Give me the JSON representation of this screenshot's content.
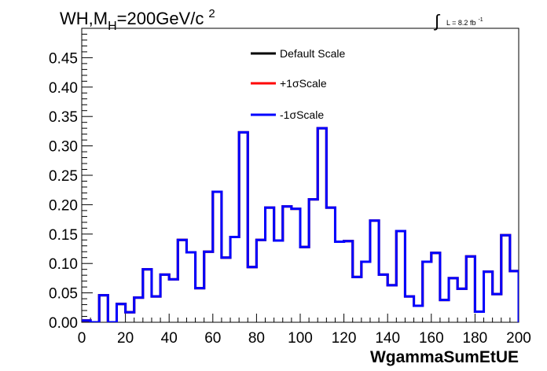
{
  "chart_data": {
    "type": "line",
    "title_main": "WH,M",
    "title_sub": "H",
    "title_rest": "=200GeV/c",
    "title_sup": "2",
    "lumi_text": "L = 8.2 fb",
    "lumi_sup": "-1",
    "xlabel": "WgammaSumEtUE",
    "ylabel": "",
    "xlim": [
      0,
      200
    ],
    "ylim": [
      0,
      0.5
    ],
    "x_ticks": [
      "0",
      "20",
      "40",
      "60",
      "80",
      "100",
      "120",
      "140",
      "160",
      "180",
      "200"
    ],
    "y_ticks": [
      "0.00",
      "0.05",
      "0.10",
      "0.15",
      "0.20",
      "0.25",
      "0.30",
      "0.35",
      "0.40",
      "0.45"
    ],
    "grid": false,
    "legend_position": "top-center",
    "bin_width": 4,
    "series": [
      {
        "name": "Default Scale",
        "color": "#000000",
        "values": [
          0.003,
          0.0,
          0.046,
          0.0,
          0.031,
          0.017,
          0.042,
          0.09,
          0.044,
          0.081,
          0.073,
          0.14,
          0.119,
          0.058,
          0.12,
          0.222,
          0.11,
          0.145,
          0.323,
          0.094,
          0.14,
          0.195,
          0.139,
          0.197,
          0.193,
          0.128,
          0.209,
          0.33,
          0.195,
          0.137,
          0.138,
          0.077,
          0.103,
          0.173,
          0.081,
          0.063,
          0.155,
          0.044,
          0.028,
          0.103,
          0.118,
          0.038,
          0.075,
          0.057,
          0.112,
          0.018,
          0.086,
          0.048,
          0.148,
          0.087,
          0.0
        ]
      },
      {
        "name": "+1σScale",
        "color": "#ff0000",
        "values": [
          0.003,
          0.0,
          0.046,
          0.0,
          0.031,
          0.017,
          0.042,
          0.09,
          0.044,
          0.081,
          0.073,
          0.14,
          0.119,
          0.058,
          0.12,
          0.222,
          0.11,
          0.145,
          0.323,
          0.094,
          0.14,
          0.195,
          0.139,
          0.197,
          0.193,
          0.128,
          0.209,
          0.33,
          0.195,
          0.137,
          0.138,
          0.077,
          0.103,
          0.173,
          0.081,
          0.063,
          0.155,
          0.044,
          0.028,
          0.103,
          0.118,
          0.038,
          0.075,
          0.057,
          0.112,
          0.018,
          0.086,
          0.048,
          0.148,
          0.087,
          0.0
        ]
      },
      {
        "name": "-1σScale",
        "color": "#0000ff",
        "values": [
          0.003,
          0.0,
          0.046,
          0.0,
          0.031,
          0.017,
          0.042,
          0.09,
          0.044,
          0.081,
          0.073,
          0.14,
          0.119,
          0.058,
          0.12,
          0.222,
          0.11,
          0.145,
          0.323,
          0.094,
          0.14,
          0.195,
          0.139,
          0.197,
          0.193,
          0.128,
          0.209,
          0.33,
          0.195,
          0.137,
          0.138,
          0.077,
          0.103,
          0.173,
          0.081,
          0.063,
          0.155,
          0.044,
          0.028,
          0.103,
          0.118,
          0.038,
          0.075,
          0.057,
          0.112,
          0.018,
          0.086,
          0.048,
          0.148,
          0.087,
          0.0
        ]
      }
    ]
  }
}
